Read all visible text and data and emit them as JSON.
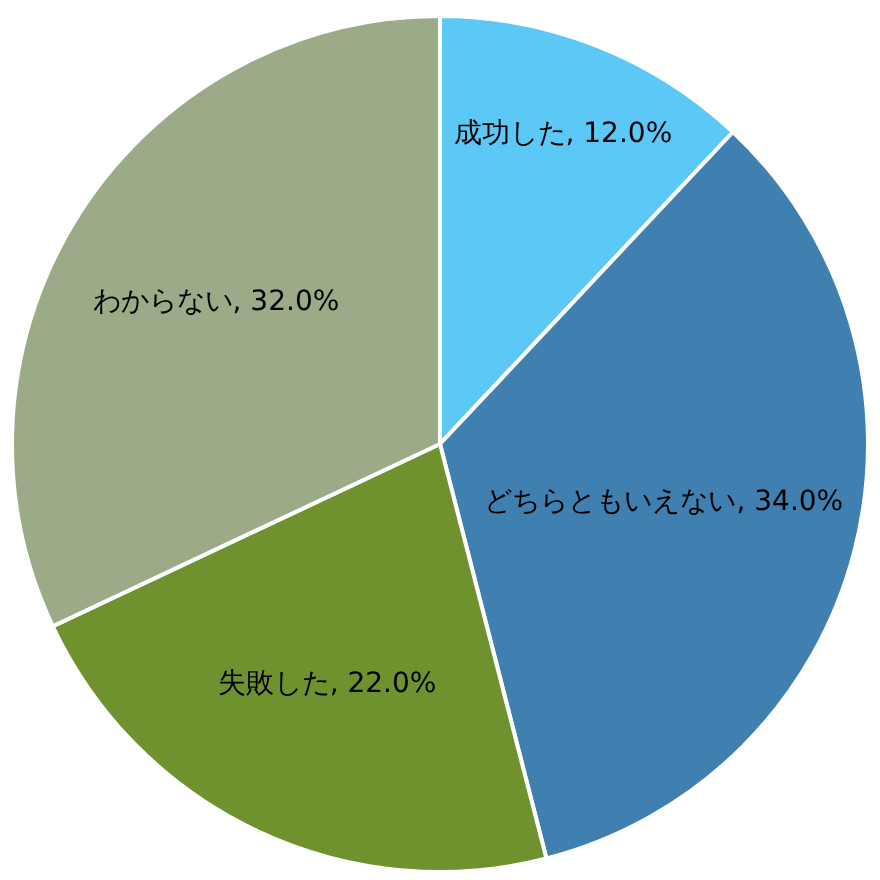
{
  "chart_data": {
    "type": "pie",
    "categories": [
      "成功した",
      "どちらともいえない",
      "失敗した",
      "わからない"
    ],
    "values": [
      12,
      34,
      22,
      32
    ],
    "value_labels": [
      "12.0%",
      "34.0%",
      "22.0%",
      "32.0%"
    ],
    "colors": [
      "#5bc8f5",
      "#4080b0",
      "#6f922f",
      "#9bab88"
    ]
  }
}
